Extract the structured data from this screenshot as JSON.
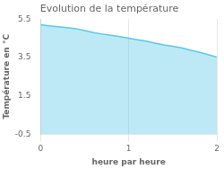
{
  "chart_data": {
    "type": "area",
    "title": "Evolution de la température",
    "xlabel": "heure par heure",
    "ylabel": "Température en °C",
    "x": [
      0.0,
      0.1,
      0.2,
      0.3,
      0.4,
      0.5,
      0.6,
      0.7,
      0.8,
      0.9,
      1.0,
      1.1,
      1.2,
      1.3,
      1.4,
      1.5,
      1.6,
      1.7,
      1.8,
      1.9,
      2.0
    ],
    "values": [
      5.2,
      5.15,
      5.1,
      5.05,
      5.0,
      4.9,
      4.8,
      4.72,
      4.65,
      4.58,
      4.5,
      4.42,
      4.35,
      4.25,
      4.15,
      4.08,
      4.0,
      3.88,
      3.78,
      3.65,
      3.52
    ],
    "color": "#5bc8e8",
    "xlim": [
      0,
      2
    ],
    "ylim": [
      -0.5,
      5.5
    ],
    "xticks": [
      0,
      1,
      2
    ],
    "yticks": [
      -0.5,
      1.5,
      3.5,
      5.5
    ],
    "grid": "x"
  }
}
